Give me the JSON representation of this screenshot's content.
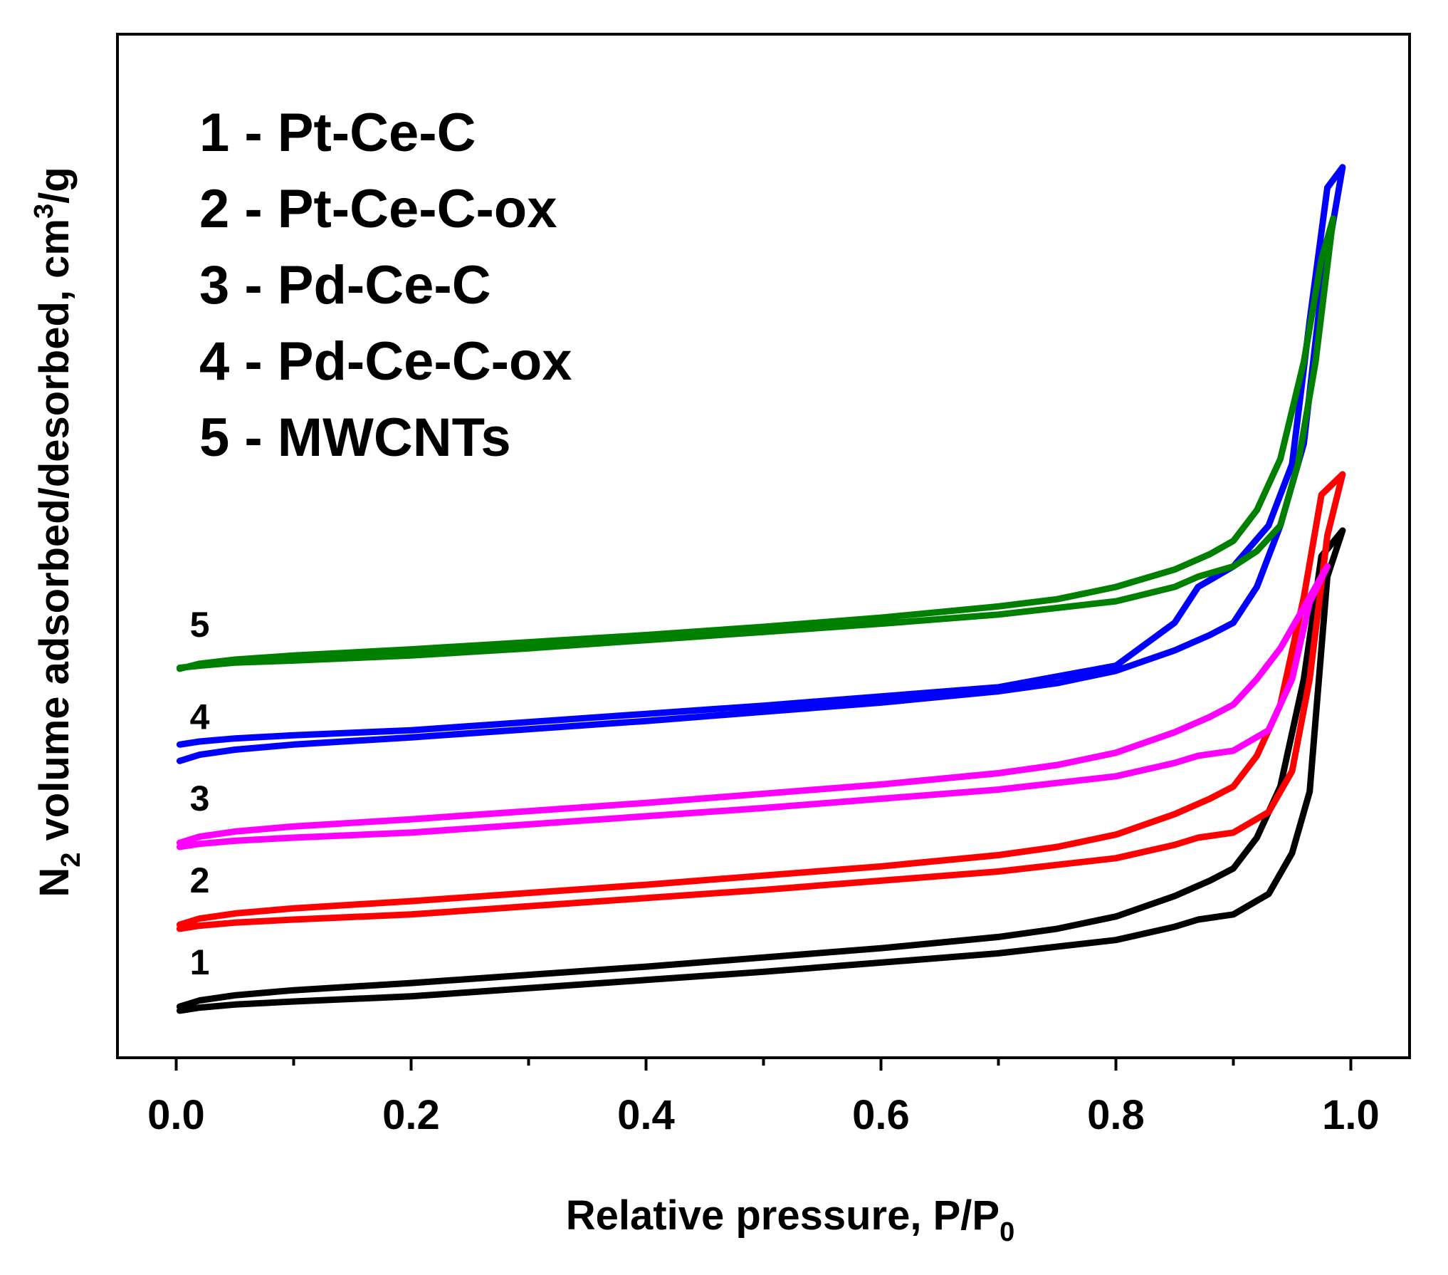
{
  "chart_data": {
    "type": "line",
    "title": "",
    "xlabel_main": "Relative pressure, P/P",
    "xlabel_sub": "0",
    "ylabel_part1": "N",
    "ylabel_sub": "2",
    "ylabel_part2": " volume adsorbed/desorbed, cm",
    "ylabel_sup": "3",
    "ylabel_part3": "/g",
    "xlim": [
      -0.05,
      1.05
    ],
    "ylim": [
      0,
      100
    ],
    "x_ticks": [
      0.0,
      0.1,
      0.2,
      0.3,
      0.4,
      0.5,
      0.6,
      0.7,
      0.8,
      0.9,
      1.0
    ],
    "x_tick_labels": [
      "0.0",
      "",
      "0.2",
      "",
      "0.4",
      "",
      "0.6",
      "",
      "0.8",
      "",
      "1.0"
    ],
    "y_ticks_shown": false,
    "legend": {
      "placement": "top-left",
      "entries": [
        "1 - Pt-Ce-C",
        "2 - Pt-Ce-C-ox",
        "3 - Pd-Ce-C",
        "4 - Pd-Ce-C-ox",
        "5 - MWCNTs"
      ]
    },
    "curve_labels": [
      "1",
      "2",
      "3",
      "4",
      "5"
    ],
    "series": [
      {
        "name": "Pt-Ce-C",
        "label": "1",
        "color": "#000000",
        "x": [
          0.003,
          0.02,
          0.05,
          0.1,
          0.2,
          0.3,
          0.4,
          0.5,
          0.6,
          0.7,
          0.75,
          0.8,
          0.85,
          0.88,
          0.9,
          0.92,
          0.94,
          0.96,
          0.975,
          0.993,
          0.98,
          0.965,
          0.95,
          0.93,
          0.9,
          0.87,
          0.85,
          0.8,
          0.7,
          0.6,
          0.5,
          0.4,
          0.3,
          0.2,
          0.1,
          0.05,
          0.02,
          0.003
        ],
        "y": [
          5.0,
          5.6,
          6.1,
          6.6,
          7.3,
          8.1,
          8.9,
          9.8,
          10.7,
          11.8,
          12.6,
          13.8,
          15.8,
          17.3,
          18.5,
          21.5,
          26.5,
          37.0,
          49.0,
          51.5,
          47.0,
          26.0,
          20.0,
          16.0,
          14.0,
          13.5,
          12.8,
          11.5,
          10.2,
          9.3,
          8.4,
          7.6,
          6.8,
          6.0,
          5.5,
          5.2,
          4.9,
          4.6
        ]
      },
      {
        "name": "Pt-Ce-C-ox",
        "label": "2",
        "color": "#ff0000",
        "x": [
          0.003,
          0.02,
          0.05,
          0.1,
          0.2,
          0.3,
          0.4,
          0.5,
          0.6,
          0.7,
          0.75,
          0.8,
          0.85,
          0.88,
          0.9,
          0.92,
          0.94,
          0.96,
          0.975,
          0.993,
          0.98,
          0.965,
          0.95,
          0.93,
          0.9,
          0.87,
          0.85,
          0.8,
          0.7,
          0.6,
          0.5,
          0.4,
          0.3,
          0.2,
          0.1,
          0.05,
          0.02,
          0.003
        ],
        "y": [
          13.0,
          13.6,
          14.1,
          14.6,
          15.3,
          16.1,
          16.9,
          17.8,
          18.7,
          19.8,
          20.6,
          21.8,
          23.8,
          25.3,
          26.5,
          29.5,
          34.5,
          45.0,
          55.0,
          57.0,
          51.0,
          37.0,
          28.0,
          24.0,
          22.0,
          21.5,
          20.8,
          19.5,
          18.2,
          17.3,
          16.4,
          15.6,
          14.8,
          14.0,
          13.5,
          13.2,
          12.9,
          12.6
        ]
      },
      {
        "name": "Pd-Ce-C",
        "label": "3",
        "color": "#ff00ff",
        "x": [
          0.003,
          0.02,
          0.05,
          0.1,
          0.2,
          0.3,
          0.4,
          0.5,
          0.6,
          0.7,
          0.75,
          0.8,
          0.85,
          0.88,
          0.9,
          0.92,
          0.94,
          0.96,
          0.98,
          0.965,
          0.95,
          0.93,
          0.9,
          0.87,
          0.85,
          0.8,
          0.7,
          0.6,
          0.5,
          0.4,
          0.3,
          0.2,
          0.1,
          0.05,
          0.02,
          0.003
        ],
        "y": [
          21.0,
          21.6,
          22.1,
          22.6,
          23.3,
          24.1,
          24.9,
          25.8,
          26.7,
          27.8,
          28.6,
          29.8,
          31.8,
          33.3,
          34.5,
          37.0,
          40.0,
          44.0,
          48.0,
          44.5,
          37.0,
          32.0,
          30.0,
          29.5,
          28.8,
          27.5,
          26.2,
          25.3,
          24.4,
          23.6,
          22.8,
          22.0,
          21.5,
          21.2,
          20.9,
          20.6
        ]
      },
      {
        "name": "Pd-Ce-C-ox",
        "label": "4",
        "color": "#0000ff",
        "x": [
          0.003,
          0.02,
          0.05,
          0.1,
          0.2,
          0.3,
          0.4,
          0.5,
          0.6,
          0.7,
          0.75,
          0.8,
          0.85,
          0.88,
          0.9,
          0.92,
          0.94,
          0.96,
          0.975,
          0.993,
          0.98,
          0.965,
          0.95,
          0.93,
          0.9,
          0.87,
          0.85,
          0.8,
          0.7,
          0.6,
          0.5,
          0.4,
          0.3,
          0.2,
          0.1,
          0.05,
          0.02,
          0.003
        ],
        "y": [
          29.0,
          29.6,
          30.1,
          30.6,
          31.3,
          32.1,
          32.9,
          33.8,
          34.7,
          35.8,
          36.6,
          37.8,
          39.8,
          41.3,
          42.5,
          46.0,
          52.0,
          60.0,
          75.0,
          87.0,
          85.0,
          72.0,
          58.0,
          52.0,
          48.0,
          46.0,
          42.5,
          38.3,
          36.2,
          35.3,
          34.4,
          33.6,
          32.8,
          32.0,
          31.5,
          31.2,
          30.9,
          30.6
        ]
      },
      {
        "name": "MWCNTs",
        "label": "5",
        "color": "#008000",
        "x": [
          0.003,
          0.02,
          0.05,
          0.1,
          0.2,
          0.3,
          0.4,
          0.5,
          0.6,
          0.7,
          0.75,
          0.8,
          0.85,
          0.88,
          0.9,
          0.92,
          0.94,
          0.96,
          0.975,
          0.985,
          0.97,
          0.955,
          0.94,
          0.92,
          0.9,
          0.87,
          0.85,
          0.8,
          0.7,
          0.6,
          0.5,
          0.4,
          0.3,
          0.2,
          0.1,
          0.05,
          0.02,
          0.003
        ],
        "y": [
          38.0,
          38.5,
          38.9,
          39.3,
          39.9,
          40.6,
          41.3,
          42.1,
          43.0,
          44.1,
          44.8,
          46.0,
          47.7,
          49.2,
          50.5,
          53.5,
          58.5,
          68.0,
          78.0,
          82.0,
          68.0,
          58.0,
          52.0,
          49.5,
          48.0,
          47.0,
          46.0,
          44.6,
          43.3,
          42.4,
          41.6,
          40.8,
          40.0,
          39.3,
          38.8,
          38.6,
          38.3,
          38.1
        ]
      }
    ]
  }
}
